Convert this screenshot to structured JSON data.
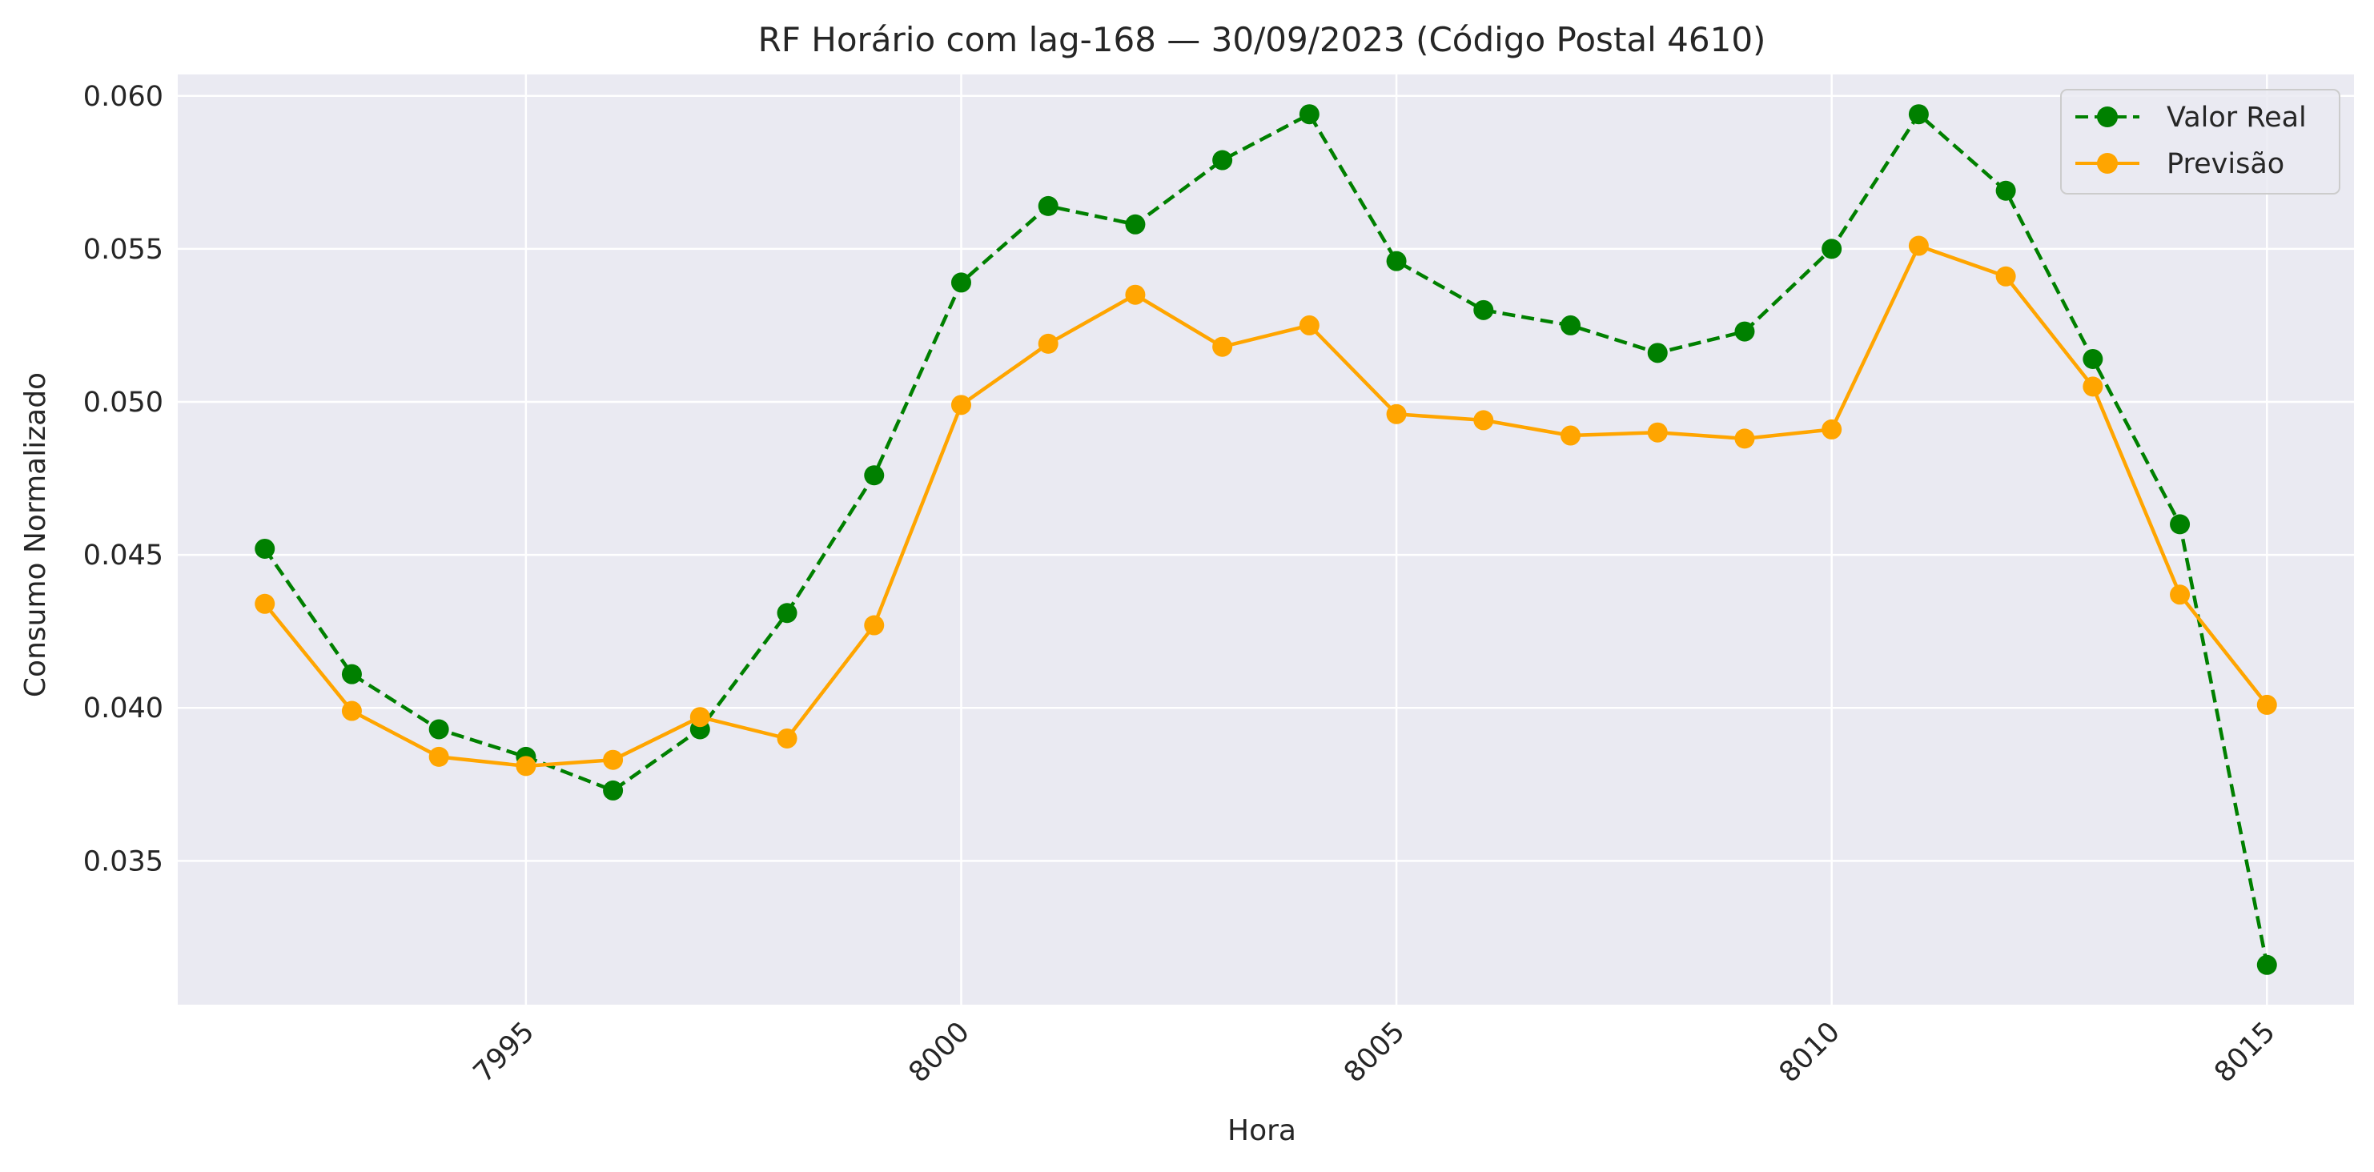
{
  "chart_data": {
    "type": "line",
    "title": "RF Horário com lag-168 — 30/09/2023 (Código Postal 4610)",
    "xlabel": "Hora",
    "ylabel": "Consumo Normalizado",
    "xlim": [
      7991,
      8016
    ],
    "ylim": [
      0.0303,
      0.0607
    ],
    "xticks": [
      7995,
      8000,
      8005,
      8010,
      8015
    ],
    "xtick_labels": [
      "7995",
      "8000",
      "8005",
      "8010",
      "8015"
    ],
    "yticks": [
      0.035,
      0.04,
      0.045,
      0.05,
      0.055,
      0.06
    ],
    "ytick_labels": [
      "0.035",
      "0.040",
      "0.045",
      "0.050",
      "0.055",
      "0.060"
    ],
    "grid": true,
    "legend_position": "top-right",
    "x": [
      7992,
      7993,
      7994,
      7995,
      7996,
      7997,
      7998,
      7999,
      8000,
      8001,
      8002,
      8003,
      8004,
      8005,
      8006,
      8007,
      8008,
      8009,
      8010,
      8011,
      8012,
      8013,
      8014,
      8015
    ],
    "series": [
      {
        "name": "Valor Real",
        "color": "#008000",
        "linestyle": "dashed",
        "values": [
          0.0452,
          0.0411,
          0.0393,
          0.0384,
          0.0373,
          0.0393,
          0.0431,
          0.0476,
          0.0539,
          0.0564,
          0.0558,
          0.0579,
          0.0594,
          0.0546,
          0.053,
          0.0525,
          0.0516,
          0.0523,
          0.055,
          0.0594,
          0.0569,
          0.0514,
          0.046,
          0.0316
        ]
      },
      {
        "name": "Previsão",
        "color": "#FFA500",
        "linestyle": "solid",
        "values": [
          0.0434,
          0.0399,
          0.0384,
          0.0381,
          0.0383,
          0.0397,
          0.039,
          0.0427,
          0.0499,
          0.0519,
          0.0535,
          0.0518,
          0.0525,
          0.0496,
          0.0494,
          0.0489,
          0.049,
          0.0488,
          0.0491,
          0.0551,
          0.0541,
          0.0505,
          0.0437,
          0.0401
        ]
      }
    ]
  },
  "colors": {
    "plot_background": "#EAEAF2",
    "grid": "#FFFFFF",
    "text": "#262626"
  }
}
